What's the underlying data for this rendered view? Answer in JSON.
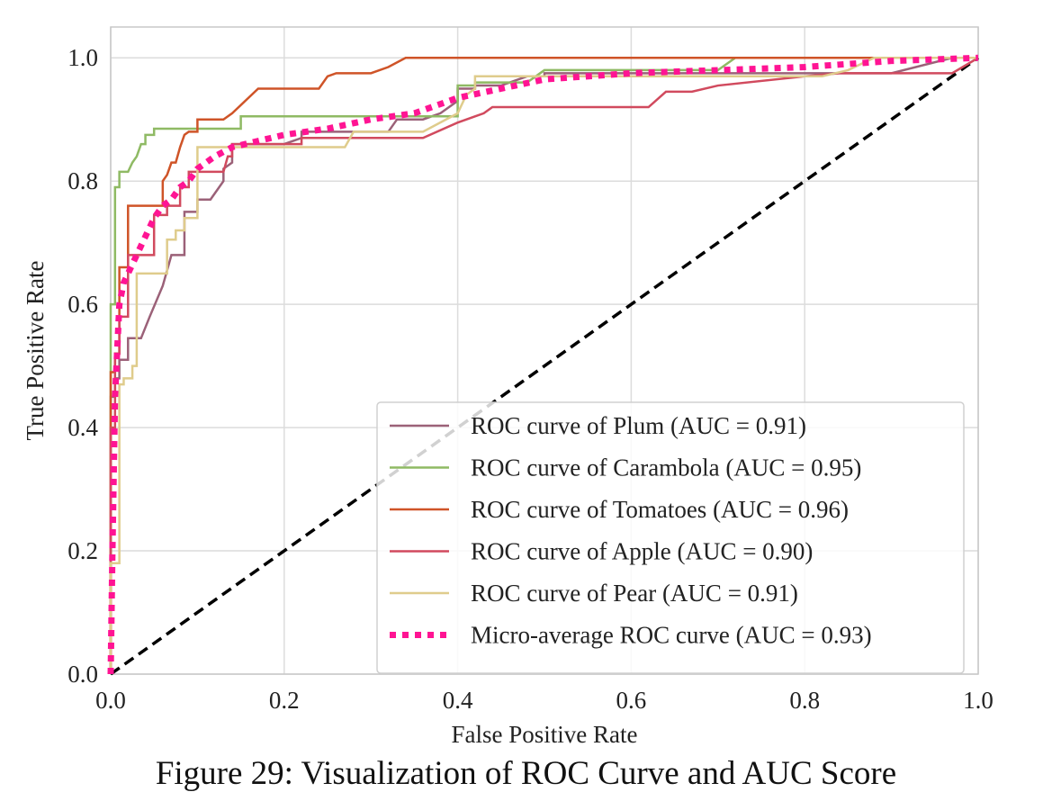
{
  "caption": "Figure 29: Visualization of ROC Curve and AUC Score",
  "chart_data": {
    "type": "line",
    "title": "",
    "xlabel": "False Positive Rate",
    "ylabel": "True Positive Rate",
    "xlim": [
      0.0,
      1.0
    ],
    "ylim": [
      0.0,
      1.05
    ],
    "xticks": [
      "0.0",
      "0.2",
      "0.4",
      "0.6",
      "0.8",
      "1.0"
    ],
    "yticks": [
      "0.0",
      "0.2",
      "0.4",
      "0.6",
      "0.8",
      "1.0"
    ],
    "grid": true,
    "legend_position": "lower-right",
    "series": [
      {
        "name": "ROC curve of Plum (AUC = 0.91)",
        "color": "#9b6178",
        "style": "solid",
        "x": [
          0.0,
          0.0,
          0.005,
          0.005,
          0.01,
          0.01,
          0.02,
          0.02,
          0.025,
          0.035,
          0.045,
          0.06,
          0.07,
          0.07,
          0.085,
          0.085,
          0.1,
          0.1,
          0.115,
          0.12,
          0.13,
          0.13,
          0.14,
          0.14,
          0.16,
          0.2,
          0.22,
          0.22,
          0.25,
          0.32,
          0.33,
          0.36,
          0.38,
          0.4,
          0.4,
          0.42,
          0.42,
          0.45,
          0.48,
          0.5,
          0.5,
          0.62,
          0.62,
          0.9,
          0.97,
          1.0
        ],
        "y": [
          0.0,
          0.45,
          0.45,
          0.48,
          0.48,
          0.51,
          0.51,
          0.545,
          0.545,
          0.545,
          0.58,
          0.63,
          0.68,
          0.68,
          0.68,
          0.75,
          0.75,
          0.77,
          0.77,
          0.78,
          0.8,
          0.82,
          0.83,
          0.86,
          0.86,
          0.86,
          0.87,
          0.88,
          0.88,
          0.88,
          0.9,
          0.9,
          0.91,
          0.93,
          0.95,
          0.95,
          0.955,
          0.955,
          0.97,
          0.97,
          0.975,
          0.975,
          0.975,
          0.975,
          1.0,
          1.0
        ]
      },
      {
        "name": "ROC curve of Carambola (AUC = 0.95)",
        "color": "#8fba64",
        "style": "solid",
        "x": [
          0.0,
          0.0,
          0.005,
          0.005,
          0.01,
          0.01,
          0.02,
          0.025,
          0.03,
          0.035,
          0.04,
          0.04,
          0.05,
          0.05,
          0.15,
          0.15,
          0.4,
          0.4,
          0.42,
          0.42,
          0.48,
          0.5,
          0.7,
          0.72,
          1.0
        ],
        "y": [
          0.0,
          0.6,
          0.6,
          0.79,
          0.79,
          0.815,
          0.815,
          0.83,
          0.84,
          0.86,
          0.86,
          0.875,
          0.875,
          0.885,
          0.885,
          0.905,
          0.905,
          0.955,
          0.955,
          0.96,
          0.96,
          0.98,
          0.98,
          1.0,
          1.0
        ]
      },
      {
        "name": "ROC curve of Tomatoes (AUC = 0.96)",
        "color": "#cf5428",
        "style": "solid",
        "x": [
          0.0,
          0.0,
          0.005,
          0.005,
          0.01,
          0.01,
          0.02,
          0.02,
          0.06,
          0.06,
          0.065,
          0.07,
          0.075,
          0.08,
          0.085,
          0.09,
          0.1,
          0.1,
          0.13,
          0.14,
          0.17,
          0.24,
          0.25,
          0.26,
          0.3,
          0.32,
          0.34,
          1.0
        ],
        "y": [
          0.0,
          0.49,
          0.49,
          0.52,
          0.52,
          0.66,
          0.66,
          0.76,
          0.76,
          0.8,
          0.81,
          0.83,
          0.83,
          0.855,
          0.875,
          0.88,
          0.88,
          0.9,
          0.9,
          0.91,
          0.95,
          0.95,
          0.97,
          0.975,
          0.975,
          0.985,
          1.0,
          1.0
        ]
      },
      {
        "name": "ROC curve of Apple (AUC = 0.90)",
        "color": "#d14a5e",
        "style": "solid",
        "x": [
          0.0,
          0.0,
          0.005,
          0.005,
          0.01,
          0.01,
          0.02,
          0.02,
          0.05,
          0.05,
          0.065,
          0.065,
          0.08,
          0.08,
          0.09,
          0.09,
          0.13,
          0.135,
          0.14,
          0.14,
          0.22,
          0.22,
          0.36,
          0.4,
          0.43,
          0.44,
          0.62,
          0.64,
          0.67,
          0.7,
          0.8,
          0.84,
          0.97,
          1.0
        ],
        "y": [
          0.0,
          0.4,
          0.4,
          0.52,
          0.52,
          0.58,
          0.58,
          0.68,
          0.68,
          0.745,
          0.745,
          0.76,
          0.76,
          0.79,
          0.79,
          0.815,
          0.815,
          0.84,
          0.84,
          0.86,
          0.86,
          0.87,
          0.87,
          0.895,
          0.91,
          0.92,
          0.92,
          0.945,
          0.945,
          0.955,
          0.97,
          0.975,
          0.975,
          1.0
        ]
      },
      {
        "name": "ROC curve of Pear (AUC = 0.91)",
        "color": "#dfcc8c",
        "style": "solid",
        "x": [
          0.0,
          0.0,
          0.005,
          0.01,
          0.01,
          0.015,
          0.015,
          0.025,
          0.025,
          0.03,
          0.03,
          0.065,
          0.065,
          0.075,
          0.075,
          0.085,
          0.085,
          0.1,
          0.1,
          0.15,
          0.15,
          0.27,
          0.28,
          0.36,
          0.38,
          0.4,
          0.41,
          0.42,
          0.42,
          0.82,
          0.85,
          0.88,
          1.0
        ],
        "y": [
          0.0,
          0.18,
          0.18,
          0.18,
          0.47,
          0.47,
          0.48,
          0.48,
          0.5,
          0.5,
          0.65,
          0.65,
          0.705,
          0.705,
          0.72,
          0.72,
          0.74,
          0.74,
          0.855,
          0.855,
          0.855,
          0.855,
          0.88,
          0.88,
          0.895,
          0.91,
          0.94,
          0.95,
          0.97,
          0.97,
          0.98,
          1.0,
          1.0
        ]
      },
      {
        "name": "Micro-average ROC curve (AUC = 0.93)",
        "color": "#ff1493",
        "style": "dotted",
        "x": [
          0.0,
          0.002,
          0.005,
          0.01,
          0.015,
          0.02,
          0.03,
          0.04,
          0.05,
          0.06,
          0.07,
          0.08,
          0.09,
          0.1,
          0.12,
          0.14,
          0.17,
          0.2,
          0.25,
          0.3,
          0.35,
          0.4,
          0.45,
          0.5,
          0.6,
          0.7,
          0.8,
          0.9,
          1.0
        ],
        "y": [
          0.0,
          0.2,
          0.45,
          0.6,
          0.635,
          0.65,
          0.68,
          0.71,
          0.74,
          0.76,
          0.77,
          0.79,
          0.8,
          0.82,
          0.84,
          0.855,
          0.865,
          0.875,
          0.885,
          0.9,
          0.91,
          0.935,
          0.95,
          0.965,
          0.975,
          0.98,
          0.985,
          0.995,
          1.0
        ]
      }
    ],
    "reference_line": {
      "x": [
        0.0,
        1.0
      ],
      "y": [
        0.0,
        1.0
      ],
      "color": "#000000",
      "style": "dashed"
    }
  }
}
